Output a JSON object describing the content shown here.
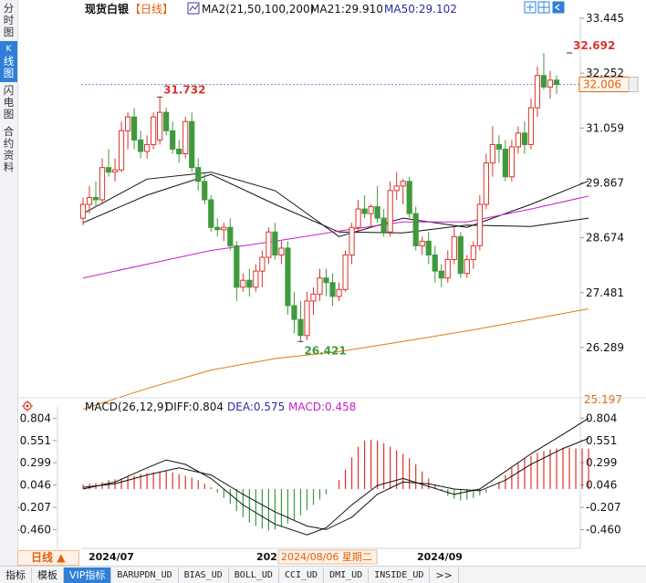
{
  "instrument": "现货白银",
  "period_badge": "【日线】",
  "ma_indicator": "MA2(21,50,100,200)",
  "ma21_label": "MA21:29.910",
  "ma50_label": "MA50:29.102",
  "high_label": "32.692",
  "left_high_label": "31.732",
  "low_label": "26.421",
  "current_price": "32.006",
  "last_axis_value": "25.197",
  "price_ticks": [
    "33.445",
    "32.252",
    "31.059",
    "29.867",
    "28.674",
    "27.481",
    "26.289"
  ],
  "macd_title": "MACD(26,12,9)",
  "macd_diff": "DIFF:0.804",
  "macd_dea": "DEA:0.575",
  "macd_val": "MACD:0.458",
  "macd_ticks": [
    "0.804",
    "0.551",
    "0.299",
    "0.046",
    "-0.207",
    "-0.460"
  ],
  "x_labels": [
    "2024/07",
    "202",
    "2024/09"
  ],
  "crosshair_date": "2024/08/06 星期二",
  "period_button": "日线",
  "sidebar": [
    {
      "label": "分时图",
      "active": false
    },
    {
      "label": "K线图",
      "active": true
    },
    {
      "label": "闪电图",
      "active": false
    },
    {
      "label": "合约资料",
      "active": false
    }
  ],
  "bottom_tabs": [
    "指标",
    "模板",
    "VIP指标",
    "BARUPDN_UD",
    "BIAS_UD",
    "BOLL_UD",
    "CCI_UD",
    "DMI_UD",
    "INSIDE_UD",
    ">>"
  ],
  "colors": {
    "up": "#d9342b",
    "down": "#3f9a3e",
    "ma21": "#111111",
    "ma50": "#111111",
    "ma100": "#c81ec8",
    "ma200": "#e07b10",
    "dea": "#111111",
    "diff": "#111111",
    "accent": "#2f7fd8"
  },
  "chart_data": [
    {
      "type": "candlestick",
      "title": "现货白银【日线】",
      "ylim": [
        25.197,
        33.445
      ],
      "ticks": [
        33.445,
        32.252,
        31.059,
        29.867,
        28.674,
        27.481,
        26.289
      ],
      "candles": [
        {
          "o": 29.1,
          "h": 29.55,
          "l": 28.95,
          "c": 29.4
        },
        {
          "o": 29.4,
          "h": 29.8,
          "l": 29.2,
          "c": 29.55
        },
        {
          "o": 29.55,
          "h": 29.9,
          "l": 29.35,
          "c": 29.5
        },
        {
          "o": 29.5,
          "h": 30.4,
          "l": 29.4,
          "c": 30.2
        },
        {
          "o": 30.2,
          "h": 30.6,
          "l": 30.0,
          "c": 30.1
        },
        {
          "o": 30.1,
          "h": 30.4,
          "l": 29.9,
          "c": 30.15
        },
        {
          "o": 30.15,
          "h": 31.2,
          "l": 30.1,
          "c": 31.0
        },
        {
          "o": 31.0,
          "h": 31.4,
          "l": 30.6,
          "c": 31.3
        },
        {
          "o": 31.3,
          "h": 31.5,
          "l": 30.6,
          "c": 30.8
        },
        {
          "o": 30.8,
          "h": 31.0,
          "l": 30.4,
          "c": 30.55
        },
        {
          "o": 30.55,
          "h": 30.9,
          "l": 30.4,
          "c": 30.7
        },
        {
          "o": 30.7,
          "h": 31.4,
          "l": 30.6,
          "c": 31.3
        },
        {
          "o": 30.8,
          "h": 31.732,
          "l": 30.7,
          "c": 31.4
        },
        {
          "o": 31.4,
          "h": 31.5,
          "l": 30.9,
          "c": 31.0
        },
        {
          "o": 31.0,
          "h": 31.2,
          "l": 30.5,
          "c": 30.6
        },
        {
          "o": 30.6,
          "h": 30.8,
          "l": 30.3,
          "c": 30.5
        },
        {
          "o": 30.5,
          "h": 31.3,
          "l": 30.4,
          "c": 31.2
        },
        {
          "o": 31.2,
          "h": 31.4,
          "l": 30.1,
          "c": 30.2
        },
        {
          "o": 30.2,
          "h": 30.4,
          "l": 29.7,
          "c": 29.9
        },
        {
          "o": 29.9,
          "h": 30.1,
          "l": 29.4,
          "c": 29.5
        },
        {
          "o": 29.5,
          "h": 29.6,
          "l": 28.8,
          "c": 28.9
        },
        {
          "o": 28.9,
          "h": 29.1,
          "l": 28.7,
          "c": 28.85
        },
        {
          "o": 28.85,
          "h": 29.0,
          "l": 28.6,
          "c": 28.9
        },
        {
          "o": 28.9,
          "h": 29.1,
          "l": 28.4,
          "c": 28.5
        },
        {
          "o": 28.5,
          "h": 28.6,
          "l": 27.3,
          "c": 27.6
        },
        {
          "o": 27.6,
          "h": 27.9,
          "l": 27.5,
          "c": 27.75
        },
        {
          "o": 27.75,
          "h": 28.0,
          "l": 27.4,
          "c": 27.6
        },
        {
          "o": 27.6,
          "h": 28.1,
          "l": 27.5,
          "c": 27.95
        },
        {
          "o": 27.95,
          "h": 28.4,
          "l": 27.6,
          "c": 28.25
        },
        {
          "o": 28.25,
          "h": 28.9,
          "l": 28.1,
          "c": 28.8
        },
        {
          "o": 28.8,
          "h": 29.0,
          "l": 28.2,
          "c": 28.3
        },
        {
          "o": 28.3,
          "h": 28.6,
          "l": 28.1,
          "c": 28.45
        },
        {
          "o": 28.45,
          "h": 28.6,
          "l": 27.0,
          "c": 27.2
        },
        {
          "o": 27.2,
          "h": 27.5,
          "l": 26.6,
          "c": 26.9
        },
        {
          "o": 26.9,
          "h": 27.3,
          "l": 26.421,
          "c": 26.55
        },
        {
          "o": 26.55,
          "h": 27.5,
          "l": 26.45,
          "c": 27.3
        },
        {
          "o": 27.3,
          "h": 27.6,
          "l": 27.0,
          "c": 27.45
        },
        {
          "o": 27.45,
          "h": 28.0,
          "l": 27.3,
          "c": 27.8
        },
        {
          "o": 27.8,
          "h": 28.0,
          "l": 27.4,
          "c": 27.7
        },
        {
          "o": 27.7,
          "h": 27.9,
          "l": 27.2,
          "c": 27.4
        },
        {
          "o": 27.4,
          "h": 27.7,
          "l": 27.3,
          "c": 27.55
        },
        {
          "o": 27.55,
          "h": 28.4,
          "l": 27.5,
          "c": 28.3
        },
        {
          "o": 28.3,
          "h": 29.0,
          "l": 28.1,
          "c": 28.9
        },
        {
          "o": 28.9,
          "h": 29.5,
          "l": 28.8,
          "c": 29.3
        },
        {
          "o": 29.3,
          "h": 29.6,
          "l": 29.1,
          "c": 29.2
        },
        {
          "o": 29.2,
          "h": 29.4,
          "l": 28.9,
          "c": 29.35
        },
        {
          "o": 29.35,
          "h": 29.8,
          "l": 29.0,
          "c": 29.1
        },
        {
          "o": 29.1,
          "h": 29.3,
          "l": 28.7,
          "c": 28.8
        },
        {
          "o": 28.8,
          "h": 29.9,
          "l": 28.7,
          "c": 29.7
        },
        {
          "o": 29.7,
          "h": 30.1,
          "l": 29.5,
          "c": 29.8
        },
        {
          "o": 29.8,
          "h": 29.95,
          "l": 29.4,
          "c": 29.9
        },
        {
          "o": 29.9,
          "h": 30.0,
          "l": 29.1,
          "c": 29.2
        },
        {
          "o": 29.2,
          "h": 29.35,
          "l": 28.4,
          "c": 28.5
        },
        {
          "o": 28.5,
          "h": 28.7,
          "l": 28.3,
          "c": 28.6
        },
        {
          "o": 28.6,
          "h": 28.8,
          "l": 28.1,
          "c": 28.3
        },
        {
          "o": 28.3,
          "h": 28.5,
          "l": 27.7,
          "c": 27.95
        },
        {
          "o": 27.95,
          "h": 28.1,
          "l": 27.6,
          "c": 27.8
        },
        {
          "o": 27.8,
          "h": 28.4,
          "l": 27.7,
          "c": 28.2
        },
        {
          "o": 28.2,
          "h": 28.9,
          "l": 28.1,
          "c": 28.7
        },
        {
          "o": 28.7,
          "h": 28.8,
          "l": 27.8,
          "c": 27.9
        },
        {
          "o": 27.9,
          "h": 28.3,
          "l": 27.8,
          "c": 28.2
        },
        {
          "o": 28.2,
          "h": 28.6,
          "l": 28.0,
          "c": 28.5
        },
        {
          "o": 28.5,
          "h": 29.6,
          "l": 28.4,
          "c": 29.4
        },
        {
          "o": 29.4,
          "h": 30.5,
          "l": 29.3,
          "c": 30.3
        },
        {
          "o": 30.3,
          "h": 31.1,
          "l": 30.0,
          "c": 30.7
        },
        {
          "o": 30.7,
          "h": 30.9,
          "l": 30.3,
          "c": 30.6
        },
        {
          "o": 30.6,
          "h": 30.8,
          "l": 29.9,
          "c": 30.0
        },
        {
          "o": 30.0,
          "h": 30.8,
          "l": 29.9,
          "c": 30.65
        },
        {
          "o": 30.65,
          "h": 31.1,
          "l": 30.5,
          "c": 30.95
        },
        {
          "o": 30.95,
          "h": 31.2,
          "l": 30.5,
          "c": 30.7
        },
        {
          "o": 30.7,
          "h": 31.7,
          "l": 30.6,
          "c": 31.5
        },
        {
          "o": 31.5,
          "h": 32.4,
          "l": 31.3,
          "c": 32.2
        },
        {
          "o": 32.2,
          "h": 32.692,
          "l": 31.9,
          "c": 31.95
        },
        {
          "o": 31.95,
          "h": 32.3,
          "l": 31.7,
          "c": 32.1
        },
        {
          "o": 32.1,
          "h": 32.2,
          "l": 31.8,
          "c": 32.006
        }
      ],
      "moving_averages": [
        {
          "name": "MA21",
          "values": [
            [
              0,
              29.2
            ],
            [
              10,
              29.95
            ],
            [
              20,
              30.1
            ],
            [
              30,
              29.7
            ],
            [
              40,
              28.7
            ],
            [
              50,
              29.1
            ],
            [
              60,
              28.9
            ],
            [
              70,
              29.4
            ],
            [
              79,
              29.91
            ]
          ]
        },
        {
          "name": "MA50",
          "values": [
            [
              0,
              29.0
            ],
            [
              10,
              29.6
            ],
            [
              20,
              30.05
            ],
            [
              30,
              29.4
            ],
            [
              40,
              28.8
            ],
            [
              50,
              28.78
            ],
            [
              60,
              28.95
            ],
            [
              70,
              28.92
            ],
            [
              79,
              29.1
            ]
          ]
        },
        {
          "name": "MA100",
          "values": [
            [
              0,
              27.8
            ],
            [
              10,
              28.1
            ],
            [
              20,
              28.4
            ],
            [
              30,
              28.6
            ],
            [
              40,
              28.82
            ],
            [
              50,
              29.02
            ],
            [
              60,
              29.02
            ],
            [
              70,
              29.3
            ],
            [
              79,
              29.58
            ]
          ]
        },
        {
          "name": "MA200",
          "values": [
            [
              0,
              24.95
            ],
            [
              10,
              25.4
            ],
            [
              20,
              25.8
            ],
            [
              30,
              26.05
            ],
            [
              40,
              26.2
            ],
            [
              50,
              26.42
            ],
            [
              60,
              26.65
            ],
            [
              70,
              26.9
            ],
            [
              79,
              27.13
            ]
          ]
        }
      ]
    },
    {
      "type": "bar",
      "title": "MACD(26,12,9)",
      "ylim": [
        -0.58,
        0.87
      ],
      "ticks": [
        0.804,
        0.551,
        0.299,
        0.046,
        -0.207,
        -0.46
      ],
      "histogram": [
        0.05,
        0.06,
        0.07,
        0.08,
        0.1,
        0.11,
        0.12,
        0.14,
        0.15,
        0.17,
        0.18,
        0.19,
        0.2,
        0.21,
        0.19,
        0.17,
        0.15,
        0.13,
        0.1,
        0.06,
        0.02,
        -0.04,
        -0.1,
        -0.17,
        -0.25,
        -0.32,
        -0.38,
        -0.42,
        -0.45,
        -0.47,
        -0.46,
        -0.43,
        -0.39,
        -0.35,
        -0.3,
        -0.24,
        -0.18,
        -0.12,
        -0.06,
        0.0,
        0.1,
        0.22,
        0.36,
        0.48,
        0.55,
        0.56,
        0.55,
        0.52,
        0.48,
        0.44,
        0.4,
        0.35,
        0.28,
        0.2,
        0.12,
        0.05,
        -0.02,
        -0.08,
        -0.11,
        -0.13,
        -0.12,
        -0.1,
        -0.07,
        -0.04,
        0.0,
        0.08,
        0.16,
        0.24,
        0.3,
        0.35,
        0.38,
        0.41,
        0.43,
        0.45,
        0.46,
        0.47,
        0.47,
        0.46,
        0.46,
        0.458
      ],
      "series": [
        {
          "name": "DIFF",
          "values": [
            [
              0,
              0.0
            ],
            [
              5,
              0.08
            ],
            [
              10,
              0.24
            ],
            [
              13,
              0.33
            ],
            [
              16,
              0.28
            ],
            [
              20,
              0.12
            ],
            [
              25,
              -0.18
            ],
            [
              30,
              -0.4
            ],
            [
              35,
              -0.52
            ],
            [
              38,
              -0.44
            ],
            [
              42,
              -0.18
            ],
            [
              46,
              0.04
            ],
            [
              50,
              0.12
            ],
            [
              54,
              0.03
            ],
            [
              58,
              -0.06
            ],
            [
              62,
              0.0
            ],
            [
              66,
              0.2
            ],
            [
              70,
              0.4
            ],
            [
              75,
              0.62
            ],
            [
              79,
              0.804
            ]
          ]
        },
        {
          "name": "DEA",
          "values": [
            [
              0,
              0.02
            ],
            [
              5,
              0.06
            ],
            [
              10,
              0.16
            ],
            [
              15,
              0.24
            ],
            [
              20,
              0.16
            ],
            [
              25,
              -0.06
            ],
            [
              30,
              -0.26
            ],
            [
              35,
              -0.42
            ],
            [
              38,
              -0.46
            ],
            [
              42,
              -0.32
            ],
            [
              46,
              -0.06
            ],
            [
              50,
              0.08
            ],
            [
              54,
              0.06
            ],
            [
              58,
              0.0
            ],
            [
              62,
              -0.02
            ],
            [
              66,
              0.1
            ],
            [
              70,
              0.28
            ],
            [
              75,
              0.46
            ],
            [
              79,
              0.575
            ]
          ]
        }
      ]
    }
  ]
}
